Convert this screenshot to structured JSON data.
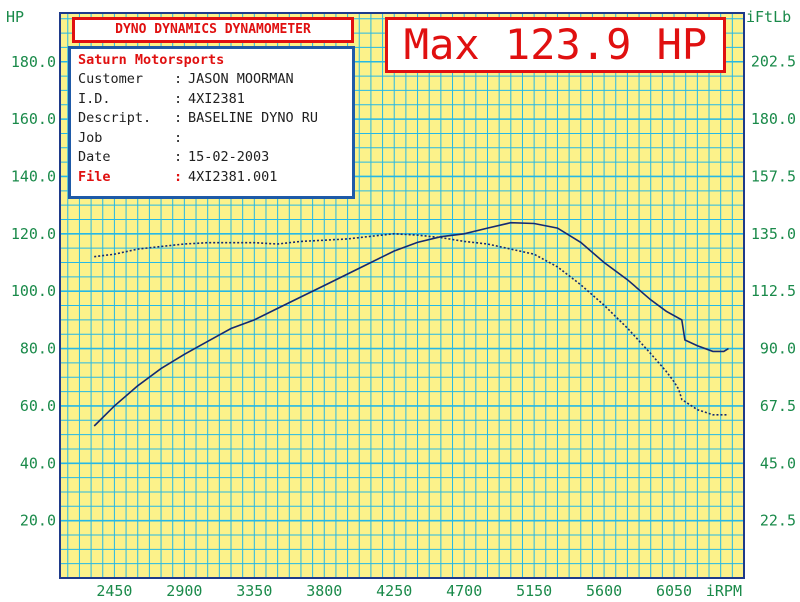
{
  "header": {
    "title": "DYNO DYNAMICS DYNAMOMETER",
    "max_label": "Max 123.9 HP"
  },
  "info": {
    "shop": "Saturn Motorsports",
    "rows": [
      {
        "key": "Customer",
        "value": "JASON MOORMAN"
      },
      {
        "key": "I.D.",
        "value": "4XI2381"
      },
      {
        "key": "Descript.",
        "value": "BASELINE DYNO RU"
      },
      {
        "key": "Job",
        "value": ""
      },
      {
        "key": "Date",
        "value": "15-02-2003"
      }
    ],
    "file": {
      "key": "File",
      "value": "4XI2381.001"
    }
  },
  "colors": {
    "background": "#fcf28a",
    "grid": "#26b8e6",
    "frame": "#1e3a8a",
    "curve": "#152a72",
    "accent_red": "#e01010",
    "info_border": "#1e5aa8",
    "label_green": "#1a8a4a"
  },
  "chart_data": {
    "type": "line",
    "title": "Max 123.9 HP",
    "y_left_label": "HP",
    "y_right_label": "iFtLb",
    "x_unit_label": "iRPM",
    "x_range": [
      2100,
      6500
    ],
    "y_left_range": [
      0,
      197
    ],
    "y_right_range": [
      0,
      221.6
    ],
    "x_ticks": [
      "2450",
      "2900",
      "3350",
      "3800",
      "4250",
      "4700",
      "5150",
      "5600",
      "6050"
    ],
    "x_tick_values": [
      2450,
      2900,
      3350,
      3800,
      4250,
      4700,
      5150,
      5600,
      6050
    ],
    "y_left_ticks": [
      "20.0",
      "40.0",
      "60.0",
      "80.0",
      "100.0",
      "120.0",
      "140.0",
      "160.0",
      "180.0"
    ],
    "y_left_tick_values": [
      20,
      40,
      60,
      80,
      100,
      120,
      140,
      160,
      180
    ],
    "y_right_ticks": [
      "22.5",
      "45.0",
      "67.5",
      "90.0",
      "112.5",
      "135.0",
      "157.5",
      "180.0",
      "202.5"
    ],
    "y_right_tick_values": [
      22.5,
      45,
      67.5,
      90,
      112.5,
      135,
      157.5,
      180,
      202.5
    ],
    "series": [
      {
        "style": "solid",
        "axis": "left",
        "x": [
          2320,
          2450,
          2600,
          2750,
          2900,
          3000,
          3100,
          3200,
          3350,
          3500,
          3650,
          3800,
          3950,
          4100,
          4250,
          4400,
          4550,
          4700,
          4850,
          5000,
          5150,
          5300,
          5450,
          5600,
          5750,
          5900,
          6000,
          6100,
          6120,
          6200,
          6300,
          6370,
          6400
        ],
        "y": [
          53,
          60,
          67,
          73,
          78,
          81,
          84,
          87,
          90,
          94,
          98,
          102,
          106,
          110,
          114,
          117,
          119,
          120,
          122,
          123.9,
          123.6,
          122,
          117,
          110,
          104,
          97,
          93,
          90,
          83,
          81,
          79,
          79,
          80
        ]
      },
      {
        "style": "dotted",
        "axis": "right",
        "x": [
          2320,
          2450,
          2600,
          2750,
          2900,
          3050,
          3200,
          3350,
          3500,
          3650,
          3800,
          3950,
          4100,
          4250,
          4400,
          4550,
          4700,
          4850,
          5000,
          5150,
          5300,
          5450,
          5600,
          5750,
          5900,
          6000,
          6050,
          6080,
          6100,
          6200,
          6300,
          6400
        ],
        "y": [
          126,
          127,
          129,
          130,
          131,
          131.5,
          131.5,
          131.5,
          131,
          132,
          132.5,
          133,
          134,
          135,
          134.5,
          133.5,
          132,
          131,
          129,
          127,
          122,
          115,
          107,
          98,
          88,
          81,
          77,
          74,
          70,
          66,
          64,
          64
        ]
      }
    ]
  }
}
